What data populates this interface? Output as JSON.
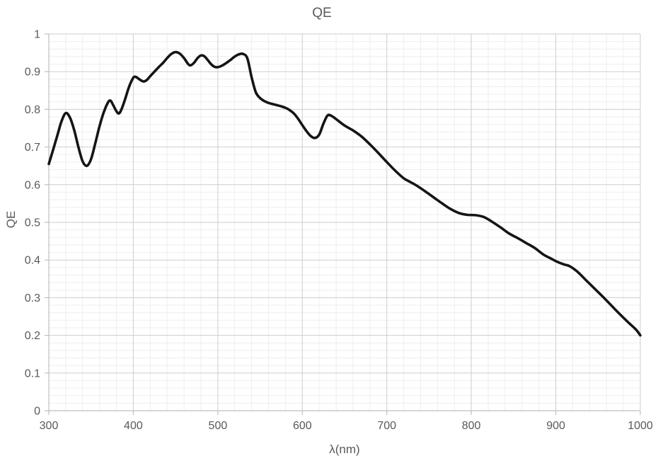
{
  "chart_data": {
    "type": "line",
    "title": "QE",
    "xlabel": "λ(nm)",
    "ylabel": "QE",
    "xlim": [
      300,
      1000
    ],
    "ylim": [
      0,
      1
    ],
    "x_tick_labels": [
      "300",
      "400",
      "500",
      "600",
      "700",
      "800",
      "900",
      "1000"
    ],
    "x_tick_values": [
      300,
      400,
      500,
      600,
      700,
      800,
      900,
      1000
    ],
    "y_tick_labels": [
      "0",
      "0.1",
      "0.2",
      "0.3",
      "0.4",
      "0.5",
      "0.6",
      "0.7",
      "0.8",
      "0.9",
      "1"
    ],
    "y_tick_values": [
      0,
      0.1,
      0.2,
      0.3,
      0.4,
      0.5,
      0.6,
      0.7,
      0.8,
      0.9,
      1
    ],
    "x_minor_step": 20,
    "y_minor_step": 0.02,
    "grid": "major+minor",
    "legend": "none",
    "series": [
      {
        "name": "QE",
        "x": [
          300,
          305,
          310,
          315,
          320,
          325,
          330,
          335,
          340,
          345,
          350,
          355,
          360,
          365,
          370,
          373,
          376,
          380,
          383,
          386,
          390,
          395,
          400,
          403,
          407,
          412,
          416,
          420,
          425,
          430,
          435,
          440,
          445,
          450,
          455,
          460,
          465,
          468,
          472,
          476,
          480,
          484,
          488,
          492,
          496,
          500,
          505,
          510,
          515,
          520,
          525,
          530,
          535,
          540,
          545,
          550,
          555,
          560,
          565,
          570,
          575,
          580,
          585,
          590,
          595,
          600,
          605,
          610,
          615,
          620,
          625,
          630,
          635,
          640,
          650,
          660,
          670,
          680,
          690,
          700,
          710,
          720,
          727,
          735,
          745,
          755,
          765,
          775,
          785,
          795,
          805,
          815,
          825,
          835,
          845,
          855,
          865,
          875,
          885,
          895,
          902,
          910,
          916,
          925,
          935,
          945,
          955,
          965,
          975,
          985,
          995,
          1000
        ],
        "y": [
          0.655,
          0.692,
          0.73,
          0.768,
          0.79,
          0.778,
          0.745,
          0.7,
          0.662,
          0.65,
          0.668,
          0.71,
          0.755,
          0.792,
          0.818,
          0.823,
          0.812,
          0.795,
          0.789,
          0.8,
          0.825,
          0.86,
          0.884,
          0.886,
          0.88,
          0.874,
          0.878,
          0.888,
          0.9,
          0.912,
          0.923,
          0.936,
          0.947,
          0.952,
          0.948,
          0.936,
          0.92,
          0.917,
          0.924,
          0.936,
          0.943,
          0.941,
          0.931,
          0.92,
          0.913,
          0.912,
          0.916,
          0.923,
          0.931,
          0.94,
          0.946,
          0.947,
          0.935,
          0.885,
          0.845,
          0.83,
          0.822,
          0.817,
          0.814,
          0.811,
          0.808,
          0.804,
          0.798,
          0.789,
          0.775,
          0.758,
          0.742,
          0.729,
          0.724,
          0.733,
          0.762,
          0.784,
          0.782,
          0.774,
          0.757,
          0.744,
          0.728,
          0.707,
          0.684,
          0.66,
          0.637,
          0.617,
          0.608,
          0.598,
          0.583,
          0.567,
          0.551,
          0.536,
          0.525,
          0.52,
          0.519,
          0.514,
          0.501,
          0.486,
          0.47,
          0.458,
          0.445,
          0.432,
          0.415,
          0.403,
          0.395,
          0.388,
          0.384,
          0.37,
          0.348,
          0.326,
          0.304,
          0.281,
          0.258,
          0.236,
          0.215,
          0.2
        ]
      }
    ]
  },
  "style": {
    "line_color": "#151515",
    "major_grid_color": "#cdcdcd",
    "minor_grid_color": "#eeeeee",
    "axis_color": "#bfbfbf",
    "text_color": "#595959",
    "background": "#ffffff"
  }
}
